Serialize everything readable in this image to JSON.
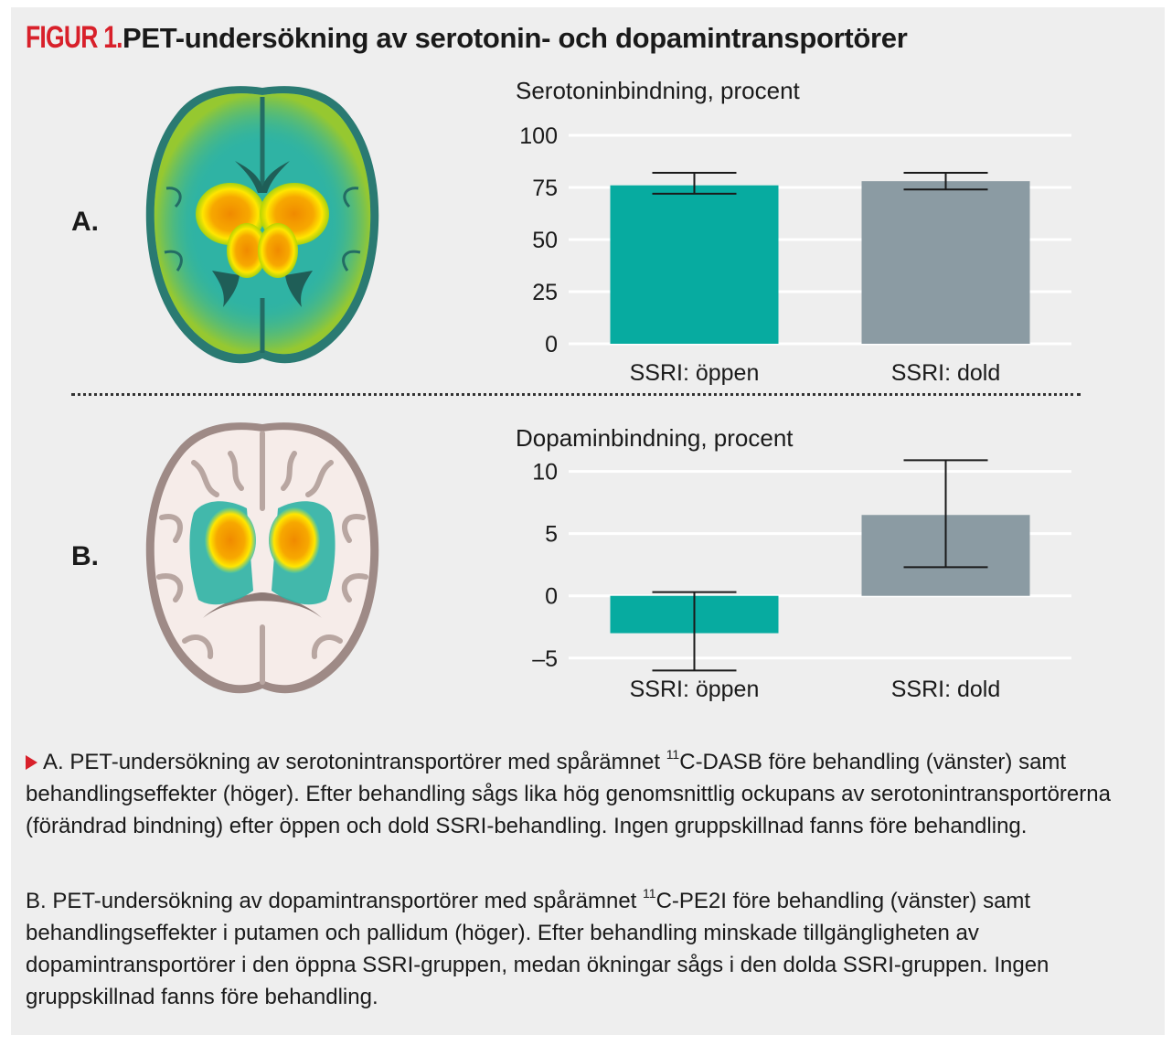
{
  "figure": {
    "label": "FIGUR 1.",
    "title": "PET-undersökning av serotonin- och dopamintransportörer"
  },
  "panels": {
    "a": {
      "letter": "A."
    },
    "b": {
      "letter": "B."
    }
  },
  "colors": {
    "teal": "#07aba0",
    "gray": "#8b9ba3",
    "accent_red": "#d8202a",
    "grid": "#ffffff"
  },
  "chart_data": [
    {
      "type": "bar",
      "title": "Serotoninbindning, procent",
      "categories": [
        "SSRI: öppen",
        "SSRI: dold"
      ],
      "values": [
        76,
        78
      ],
      "error_low": [
        72,
        74
      ],
      "error_high": [
        82,
        82
      ],
      "colors": [
        "#07aba0",
        "#8b9ba3"
      ],
      "yticks": [
        0,
        25,
        50,
        75,
        100
      ],
      "ytick_labels": [
        "0",
        "25",
        "50",
        "75",
        "100"
      ],
      "ylim": [
        0,
        100
      ],
      "grid": true
    },
    {
      "type": "bar",
      "title": "Dopaminbindning, procent",
      "categories": [
        "SSRI: öppen",
        "SSRI: dold"
      ],
      "values": [
        -3,
        6.5
      ],
      "error_low": [
        -6,
        2.3
      ],
      "error_high": [
        0.3,
        10.9
      ],
      "colors": [
        "#07aba0",
        "#8b9ba3"
      ],
      "yticks": [
        -5,
        0,
        5,
        10
      ],
      "ytick_labels": [
        "–5",
        "0",
        "5",
        "10"
      ],
      "ylim": [
        -7,
        11
      ],
      "grid": true
    }
  ],
  "caption": {
    "a": {
      "before": "A. PET-undersökning av serotonintransportörer med spårämnet ",
      "sup": "11",
      "after": "C-DASB före behandling (vänster) samt behandlingseffekter (höger). Efter behandling sågs lika hög genomsnittlig ockupans av serotonintransportörerna (förändrad bindning) efter öppen och dold SSRI-behandling. Ingen gruppskillnad fanns före behandling."
    },
    "b": {
      "before": "B. PET-undersökning av dopamintransportörer med spårämnet ",
      "sup": "11",
      "after": "C-PE2I före behandling (vänster) samt behandlingseffekter i putamen och pallidum (höger). Efter behandling minskade tillgänglig­heten av dopamintransportörer i den öppna SSRI-gruppen, medan ökningar sågs i den dolda SSRI-gruppen. Ingen gruppskillnad fanns före behandling."
    }
  }
}
